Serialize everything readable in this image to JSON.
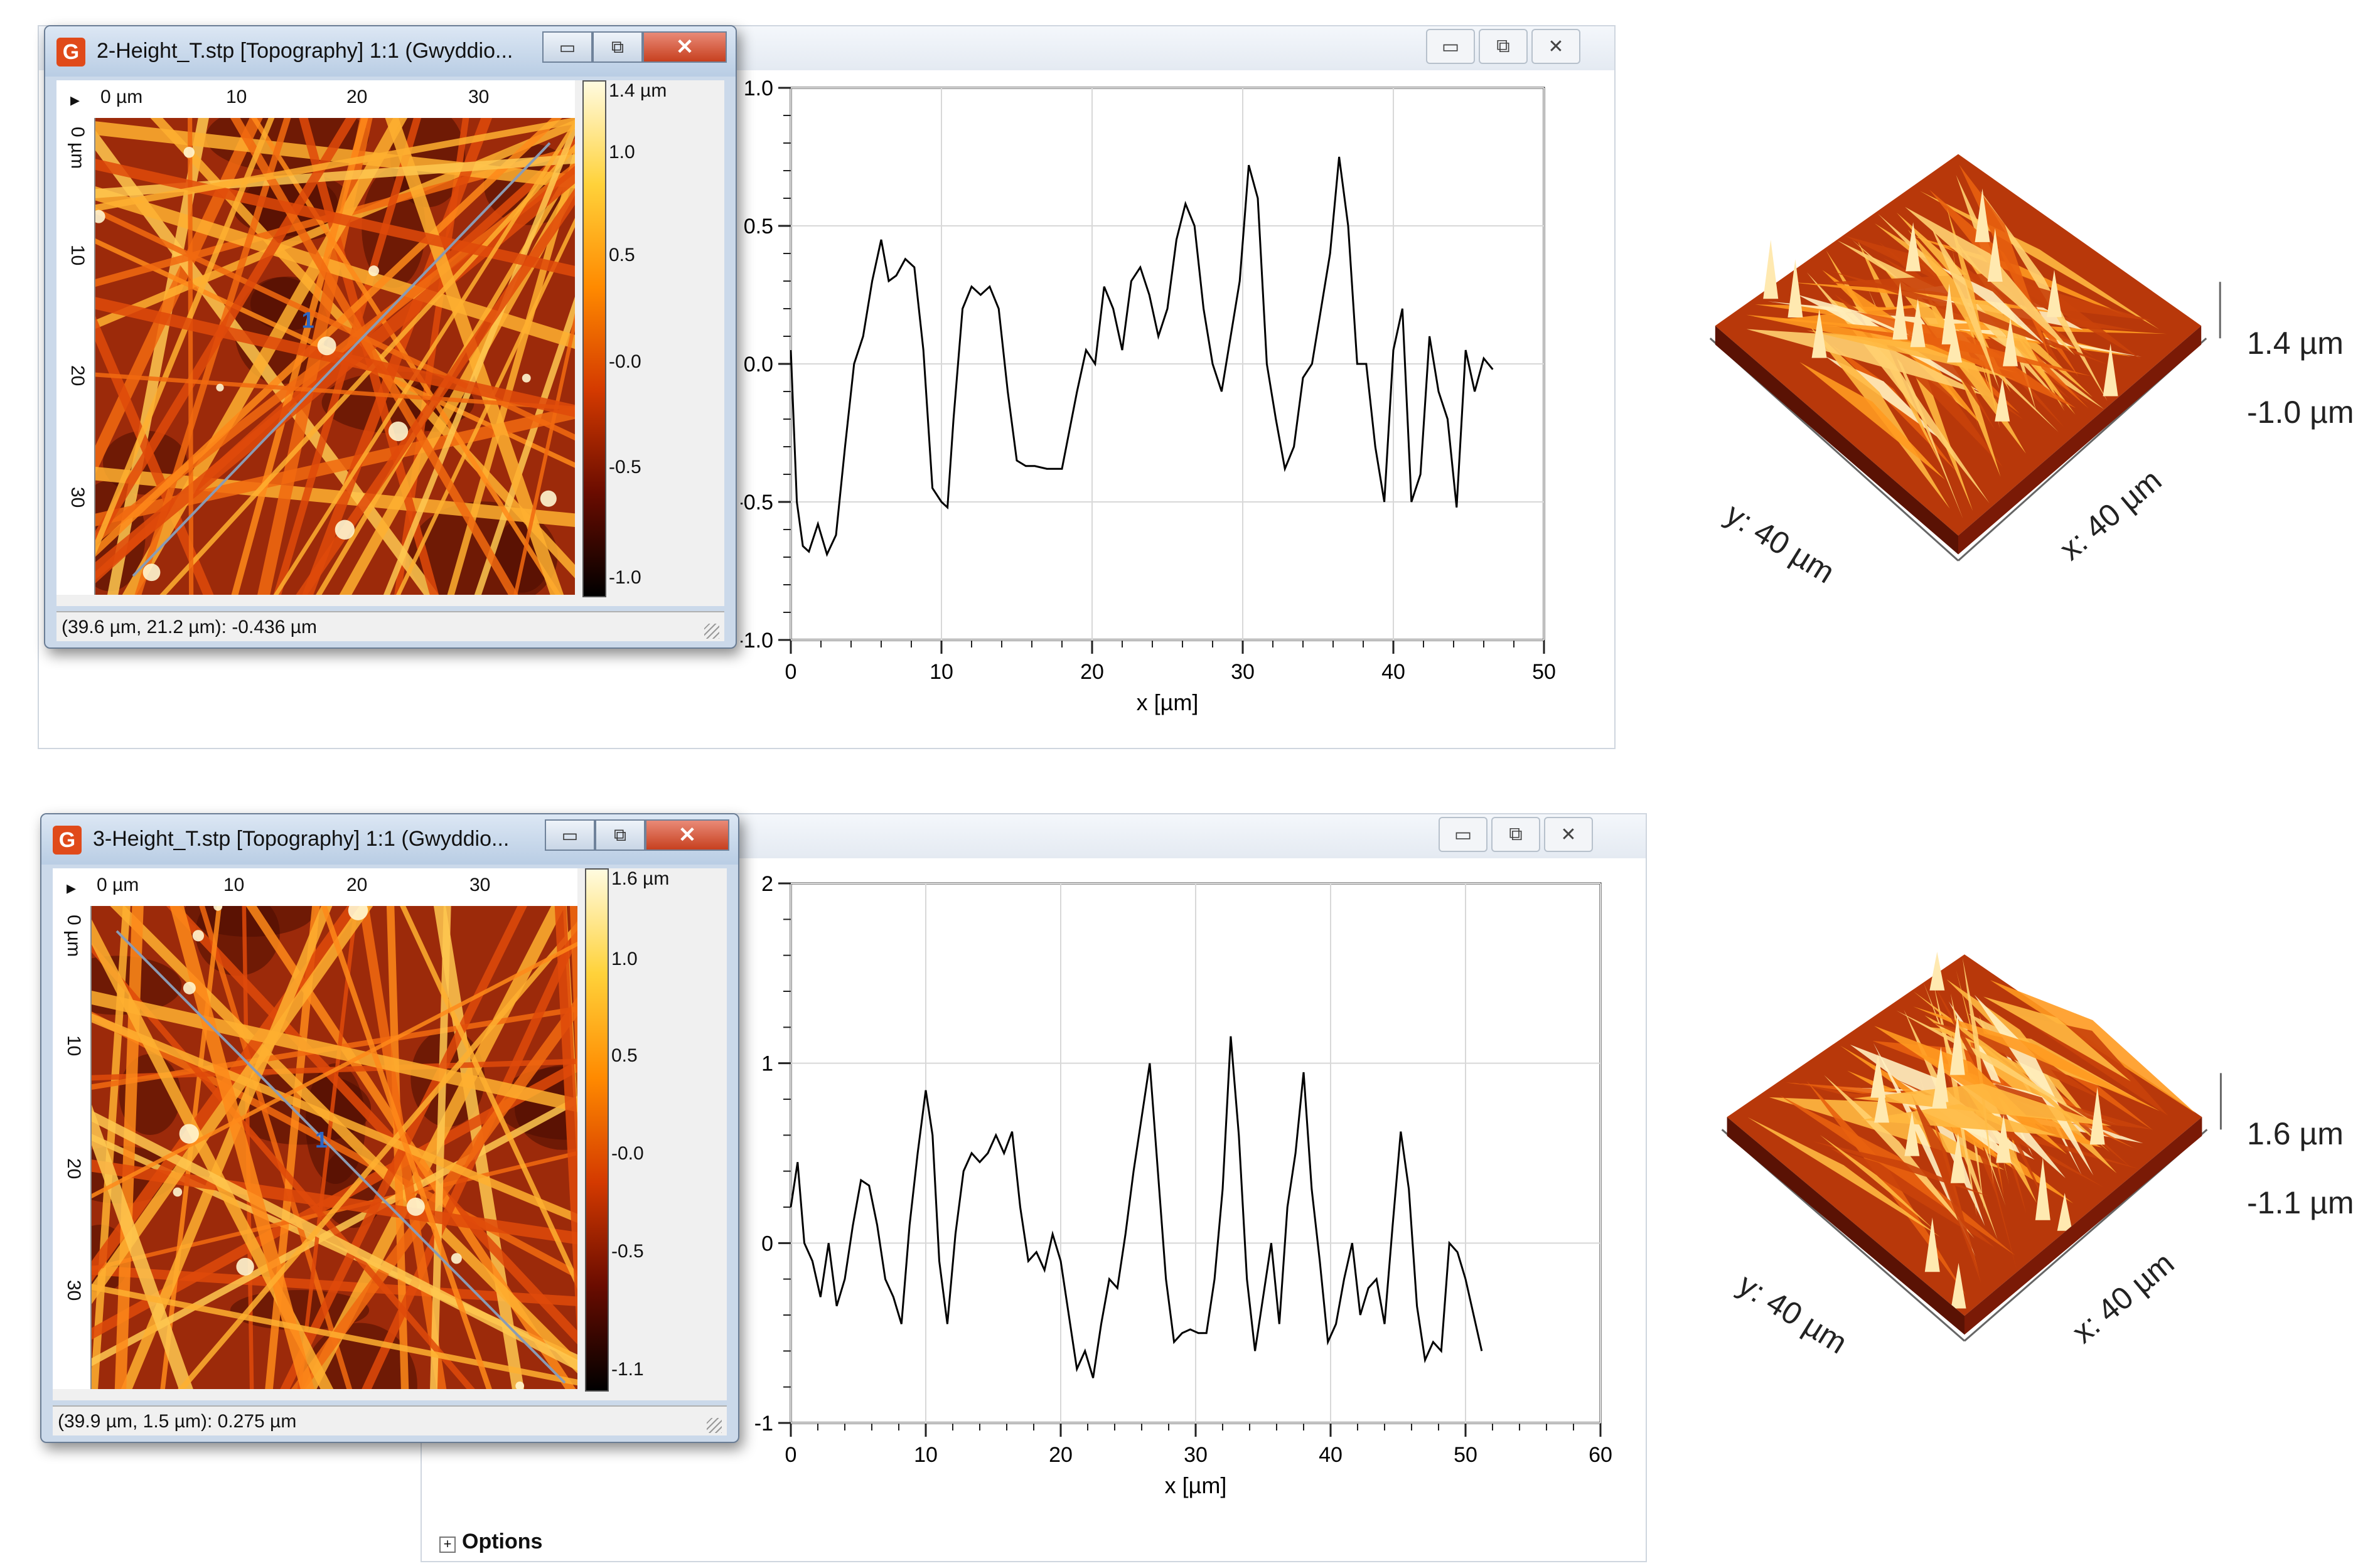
{
  "panels": [
    {
      "window_title": "2-Height_T.stp [Topography] 1:1 (Gwyddio...",
      "win_close_glyph": "✕",
      "hruler": [
        "0 µm",
        "10",
        "20",
        "30"
      ],
      "vruler": [
        "0 µm",
        "10",
        "20",
        "30"
      ],
      "colorbar": [
        "1.4 µm",
        "1.0",
        "0.5",
        "-0.0",
        "-0.5",
        "-1.0"
      ],
      "status": "(39.6 µm, 21.2 µm): -0.436 µm",
      "marker": "1",
      "surface": {
        "ztop": "1.4 µm",
        "zbot": "-1.0 µm",
        "xlab": "x: 40 µm",
        "ylab": "y: 40 µm"
      }
    },
    {
      "window_title": "3-Height_T.stp [Topography] 1:1 (Gwyddio...",
      "win_close_glyph": "✕",
      "hruler": [
        "0 µm",
        "10",
        "20",
        "30"
      ],
      "vruler": [
        "0 µm",
        "10",
        "20",
        "30"
      ],
      "colorbar": [
        "1.6 µm",
        "1.0",
        "0.5",
        "-0.0",
        "-0.5",
        "-1.1"
      ],
      "status": "(39.9 µm, 1.5 µm): 0.275 µm",
      "marker": "1",
      "surface": {
        "ztop": "1.6 µm",
        "zbot": "-1.1 µm",
        "xlab": "x: 40 µm",
        "ylab": "y: 40 µm"
      },
      "options_label": "Options",
      "options_expander": "+"
    }
  ],
  "bg_window_buttons": [
    "▭",
    "⧉",
    "✕"
  ],
  "chart_data": [
    {
      "type": "line",
      "title": "",
      "xlabel": "x [µm]",
      "ylabel": "",
      "xlim": [
        0,
        50
      ],
      "ylim": [
        -1.0,
        1.0
      ],
      "xticks": [
        "0",
        "10",
        "20",
        "30",
        "40",
        "50"
      ],
      "yticks": [
        "1.0",
        "0.5",
        "0.0",
        "-0.5",
        "-1.0"
      ],
      "grid": true,
      "x": [
        0,
        0.4,
        0.8,
        1.2,
        1.8,
        2.4,
        3.0,
        3.6,
        4.2,
        4.8,
        5.4,
        6.0,
        6.5,
        7.0,
        7.6,
        8.2,
        8.8,
        9.4,
        10.0,
        10.4,
        10.8,
        11.4,
        12.0,
        12.6,
        13.2,
        13.8,
        14.4,
        15.0,
        15.6,
        16.2,
        17.0,
        18.0,
        19.0,
        19.6,
        20.2,
        20.8,
        21.4,
        22.0,
        22.6,
        23.2,
        23.8,
        24.4,
        25.0,
        25.6,
        26.2,
        26.8,
        27.4,
        28.0,
        28.6,
        29.2,
        29.8,
        30.4,
        31.0,
        31.6,
        32.2,
        32.8,
        33.4,
        34.0,
        34.6,
        35.2,
        35.8,
        36.4,
        37.0,
        37.6,
        38.2,
        38.8,
        39.4,
        40.0,
        40.6,
        41.2,
        41.8,
        42.4,
        43.0,
        43.6,
        44.2,
        44.8,
        45.4,
        46.0,
        46.6
      ],
      "y": [
        0.05,
        -0.5,
        -0.66,
        -0.68,
        -0.58,
        -0.69,
        -0.62,
        -0.3,
        0.0,
        0.1,
        0.3,
        0.45,
        0.3,
        0.32,
        0.38,
        0.35,
        0.05,
        -0.45,
        -0.5,
        -0.52,
        -0.2,
        0.2,
        0.28,
        0.25,
        0.28,
        0.2,
        -0.1,
        -0.35,
        -0.37,
        -0.37,
        -0.38,
        -0.38,
        -0.1,
        0.05,
        0.0,
        0.28,
        0.2,
        0.05,
        0.3,
        0.35,
        0.25,
        0.1,
        0.2,
        0.45,
        0.58,
        0.5,
        0.2,
        0.0,
        -0.1,
        0.1,
        0.3,
        0.72,
        0.6,
        0.0,
        -0.2,
        -0.38,
        -0.3,
        -0.05,
        0.0,
        0.2,
        0.4,
        0.75,
        0.5,
        0.0,
        0.0,
        -0.3,
        -0.5,
        0.05,
        0.2,
        -0.5,
        -0.4,
        0.1,
        -0.1,
        -0.2,
        -0.52,
        0.05,
        -0.1,
        0.02,
        -0.02
      ],
      "series": [
        {
          "color": "#000000"
        }
      ]
    },
    {
      "type": "line",
      "title": "",
      "xlabel": "x [µm]",
      "ylabel": "",
      "xlim": [
        0,
        60
      ],
      "ylim": [
        -1.0,
        2.0
      ],
      "xticks": [
        "0",
        "10",
        "20",
        "30",
        "40",
        "50",
        "60"
      ],
      "yticks": [
        "2",
        "1",
        "0",
        "-1"
      ],
      "grid": true,
      "x": [
        0,
        0.5,
        1.0,
        1.6,
        2.2,
        2.8,
        3.4,
        4.0,
        4.6,
        5.2,
        5.8,
        6.4,
        7.0,
        7.6,
        8.2,
        8.8,
        9.4,
        10.0,
        10.5,
        11.0,
        11.6,
        12.2,
        12.8,
        13.4,
        14.0,
        14.6,
        15.2,
        15.8,
        16.4,
        17.0,
        17.6,
        18.2,
        18.8,
        19.4,
        20.0,
        20.6,
        21.2,
        21.8,
        22.4,
        23.0,
        23.6,
        24.2,
        24.8,
        25.4,
        26.0,
        26.6,
        27.2,
        27.8,
        28.4,
        29.0,
        29.6,
        30.2,
        30.8,
        31.4,
        32.0,
        32.6,
        33.2,
        33.8,
        34.4,
        35.0,
        35.6,
        36.2,
        36.8,
        37.4,
        38.0,
        38.6,
        39.2,
        39.8,
        40.4,
        41.0,
        41.6,
        42.2,
        42.8,
        43.4,
        44.0,
        44.6,
        45.2,
        45.8,
        46.4,
        47.0,
        47.6,
        48.2,
        48.8,
        49.4,
        50.0,
        50.6,
        51.2
      ],
      "y": [
        0.2,
        0.45,
        0.0,
        -0.1,
        -0.3,
        0.0,
        -0.35,
        -0.2,
        0.1,
        0.35,
        0.32,
        0.1,
        -0.2,
        -0.3,
        -0.45,
        0.1,
        0.5,
        0.85,
        0.6,
        -0.1,
        -0.45,
        0.05,
        0.4,
        0.5,
        0.45,
        0.5,
        0.6,
        0.5,
        0.62,
        0.2,
        -0.1,
        -0.05,
        -0.15,
        0.05,
        -0.1,
        -0.4,
        -0.7,
        -0.6,
        -0.75,
        -0.45,
        -0.2,
        -0.25,
        0.05,
        0.4,
        0.7,
        1.0,
        0.4,
        -0.2,
        -0.55,
        -0.5,
        -0.48,
        -0.5,
        -0.5,
        -0.2,
        0.3,
        1.15,
        0.6,
        -0.2,
        -0.6,
        -0.3,
        0.0,
        -0.45,
        0.2,
        0.5,
        0.95,
        0.3,
        -0.1,
        -0.55,
        -0.45,
        -0.2,
        0.0,
        -0.4,
        -0.25,
        -0.2,
        -0.45,
        0.1,
        0.62,
        0.3,
        -0.35,
        -0.65,
        -0.55,
        -0.6,
        0.0,
        -0.05,
        -0.2,
        -0.4,
        -0.6
      ],
      "series": [
        {
          "color": "#000000"
        }
      ]
    }
  ]
}
